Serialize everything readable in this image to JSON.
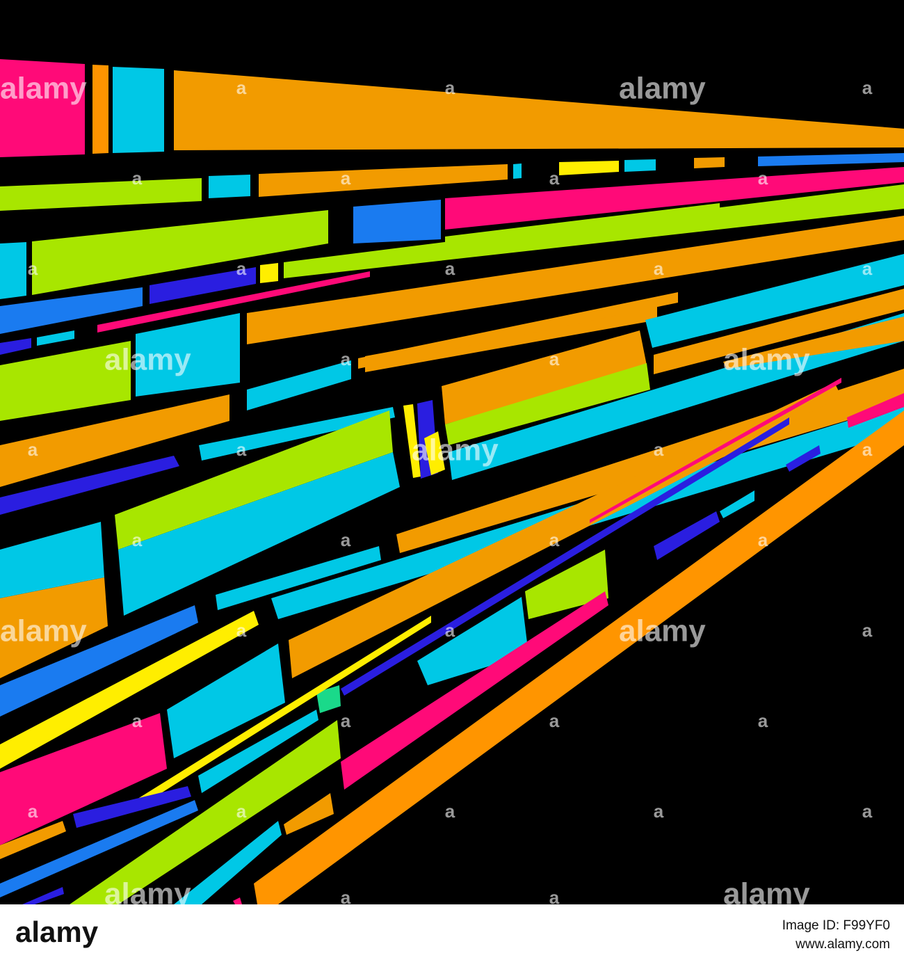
{
  "watermark": "alamy",
  "watermark_small": "a",
  "footer": {
    "logo": "alamy",
    "image_id": "Image ID: F99YF0",
    "url": "www.alamy.com"
  }
}
